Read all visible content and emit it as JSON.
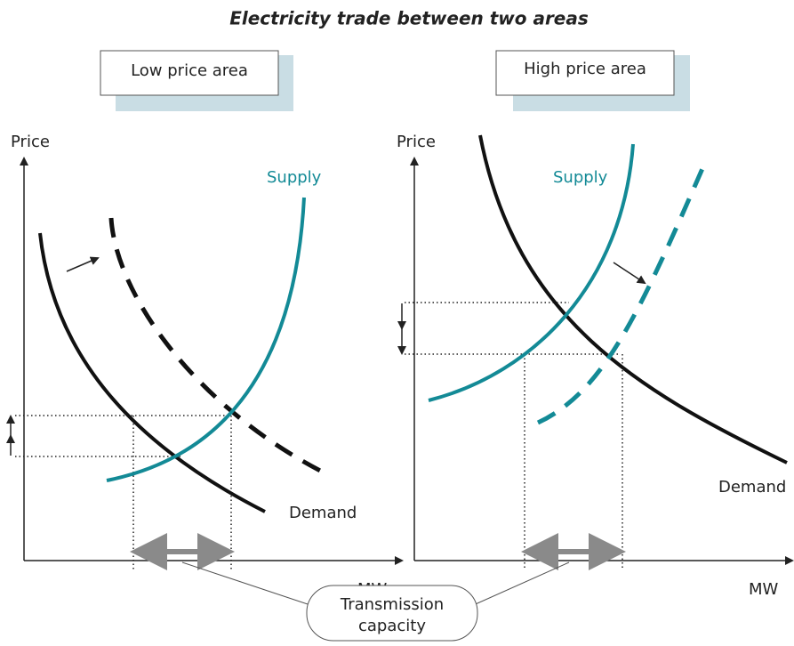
{
  "title": "Electricity trade between two areas",
  "panels": [
    {
      "box_label": "Low price area",
      "y_label": "Price",
      "x_label": "MW",
      "supply_label": "Supply",
      "demand_label": "Demand"
    },
    {
      "box_label": "High price area",
      "y_label": "Price",
      "x_label": "MW",
      "supply_label": "Supply",
      "demand_label": "Demand"
    }
  ],
  "callout": {
    "lines": [
      "Transmission",
      "capacity"
    ]
  }
}
